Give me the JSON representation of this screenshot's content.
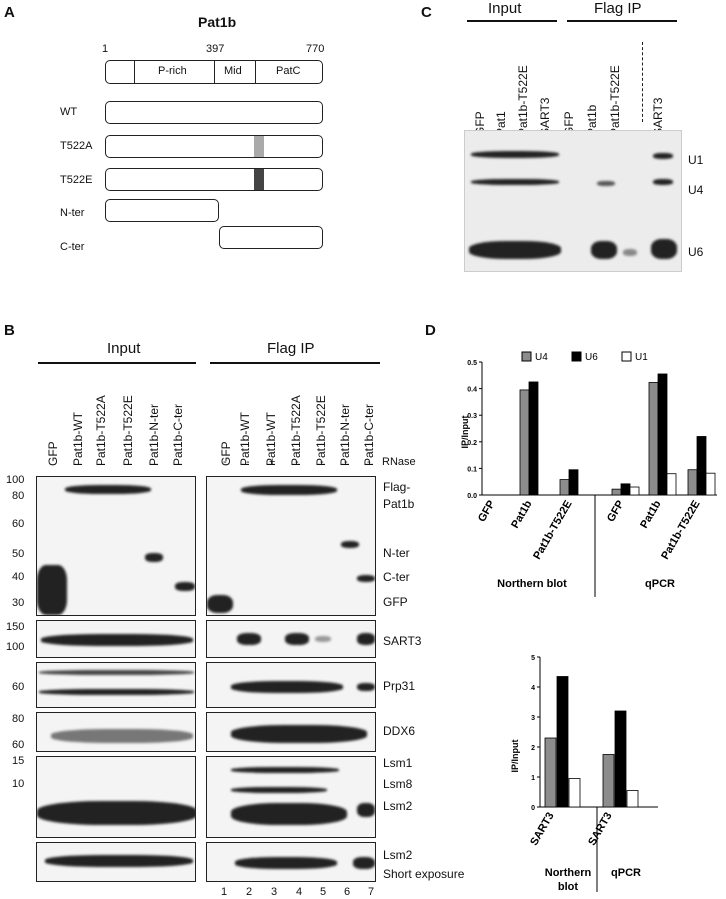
{
  "panelA": {
    "letter": "A",
    "title": "Pat1b",
    "pos_start": "1",
    "pos_mid": "397",
    "pos_end": "770",
    "domains": [
      "P-rich",
      "Mid",
      "PatC"
    ],
    "constructs": [
      "WT",
      "T522A",
      "T522E",
      "N-ter",
      "C-ter"
    ]
  },
  "panelB": {
    "letter": "B",
    "input_header": "Input",
    "flag_header": "Flag IP",
    "input_lanes": [
      "GFP",
      "Pat1b-WT",
      "Pat1b-T522A",
      "Pat1b-T522E",
      "Pat1b-N-ter",
      "Pat1b-C-ter"
    ],
    "ip_lanes": [
      "GFP",
      "Pat1b-WT",
      "Pat1b-WT",
      "Pat1b-T522A",
      "Pat1b-T522E",
      "Pat1b-N-ter",
      "Pat1b-C-ter"
    ],
    "rnase_marks": [
      "-",
      "-",
      "+",
      "-",
      "-",
      "-",
      "-"
    ],
    "rnase_label": "RNase",
    "mw_top": [
      "100",
      "80",
      "60",
      "50",
      "40",
      "30"
    ],
    "mw_sart3": [
      "150",
      "100"
    ],
    "mw_prp31": [
      "60"
    ],
    "mw_ddx6": [
      "80",
      "60"
    ],
    "mw_lsm": [
      "15",
      "10"
    ],
    "right_labels": {
      "flag": "Flag-",
      "pat1b": "Pat1b",
      "nter": "N-ter",
      "cter": "C-ter",
      "gfp": "GFP",
      "sart3": "SART3",
      "prp31": "Prp31",
      "ddx6": "DDX6",
      "lsm1": "Lsm1",
      "lsm8": "Lsm8",
      "lsm2": "Lsm2",
      "lsm2b": "Lsm2",
      "short": "Short exposure"
    },
    "lane_numbers": [
      "1",
      "2",
      "3",
      "4",
      "5",
      "6",
      "7"
    ]
  },
  "panelC": {
    "letter": "C",
    "input_header": "Input",
    "flag_header": "Flag IP",
    "input_lanes": [
      "GFP",
      "Pat1",
      "Pat1b-T522E",
      "SART3"
    ],
    "ip_lanes": [
      "GFP",
      "Pat1b",
      "Pat1b-T522E",
      "SART3"
    ],
    "band_labels": [
      "U1",
      "U4",
      "U6"
    ]
  },
  "panelD": {
    "letter": "D",
    "legend": [
      "U4",
      "U6",
      "U1"
    ],
    "colors": {
      "U4": "#8c8c8c",
      "U6": "#000000",
      "U1": "#ffffff"
    }
  },
  "chart_data": [
    {
      "type": "bar",
      "ylabel": "IP/Input",
      "ylim": [
        0,
        0.5
      ],
      "yticks": [
        "0.0",
        "0.1",
        "0.2",
        "0.3",
        "0.4",
        "0.5"
      ],
      "categories": [
        "GFP",
        "Pat1b",
        "Pat1b-T522E",
        "GFP",
        "Pat1b",
        "Pat1b-T522E"
      ],
      "groups": [
        "Northern blot",
        "qPCR"
      ],
      "series": [
        {
          "name": "U4",
          "values": [
            0,
            0.395,
            0.058,
            0.022,
            0.423,
            0.095
          ]
        },
        {
          "name": "U6",
          "values": [
            0,
            0.425,
            0.095,
            0.042,
            0.455,
            0.22
          ]
        },
        {
          "name": "U1",
          "values": [
            0,
            0,
            0,
            0.03,
            0.08,
            0.082
          ]
        }
      ]
    },
    {
      "type": "bar",
      "ylabel": "IP/Input",
      "ylim": [
        0,
        5
      ],
      "yticks": [
        "0",
        "1",
        "2",
        "3",
        "4",
        "5"
      ],
      "categories": [
        "SART3",
        "SART3"
      ],
      "groups": [
        "Northern blot",
        "qPCR"
      ],
      "series": [
        {
          "name": "U4",
          "values": [
            2.3,
            1.75
          ]
        },
        {
          "name": "U6",
          "values": [
            4.35,
            3.2
          ]
        },
        {
          "name": "U1",
          "values": [
            0.95,
            0.55
          ]
        }
      ]
    }
  ]
}
